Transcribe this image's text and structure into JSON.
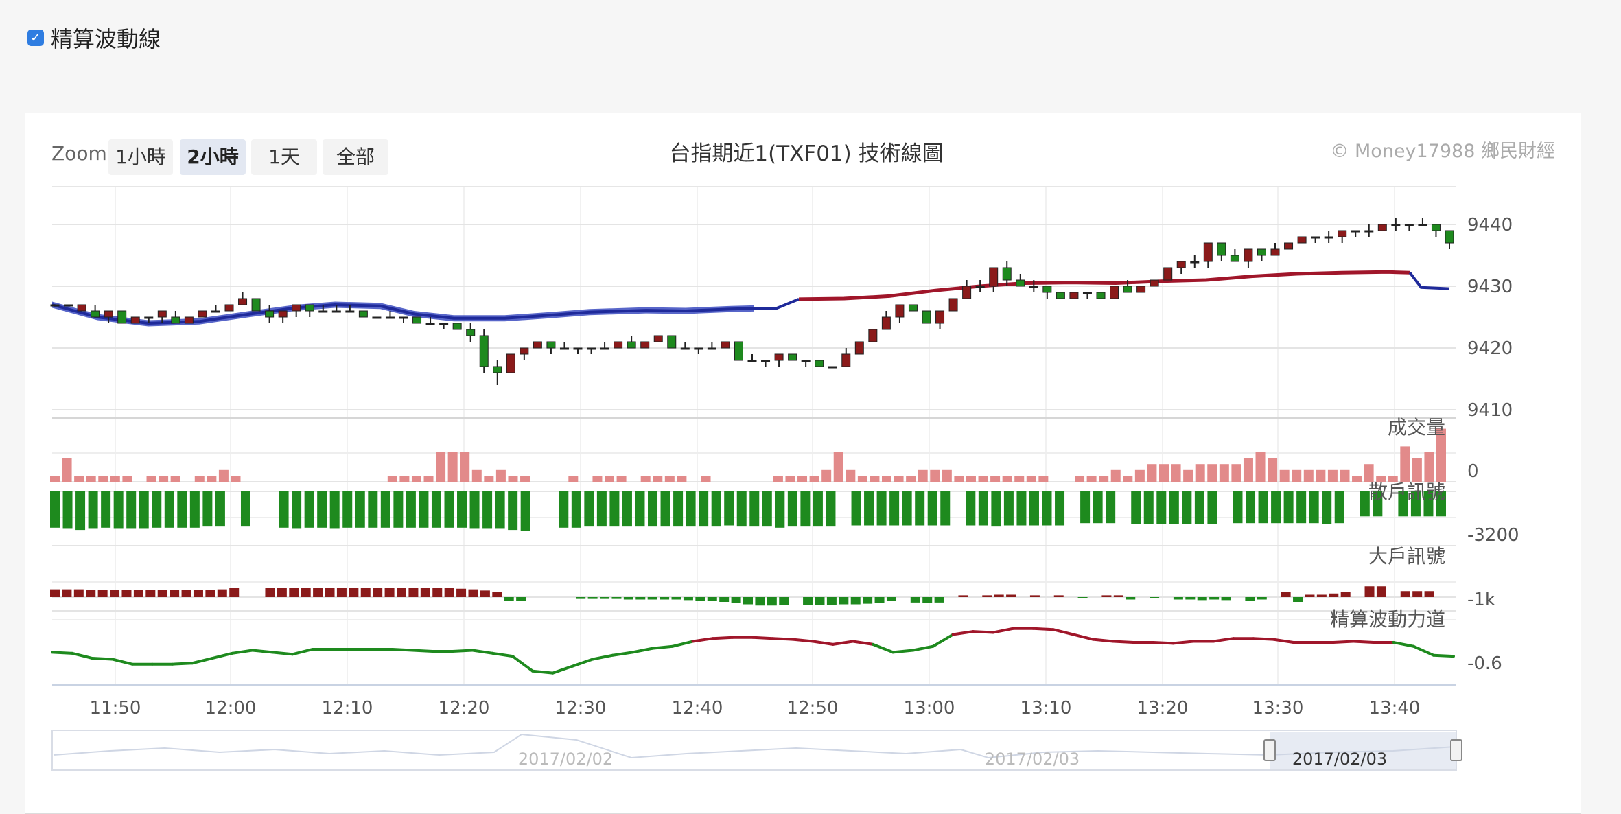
{
  "toggle": {
    "label": "精算波動線",
    "checked": true
  },
  "chart_header": {
    "zoom_label": "Zoom",
    "zoom_buttons": [
      "1小時",
      "2小時",
      "1天",
      "全部"
    ],
    "active_zoom": "2小時",
    "title": "台指期近1(TXF01) 技術線圖",
    "credit": "© Money17988 鄉民財經"
  },
  "colors": {
    "up": "#8b1a1a",
    "down": "#1e8a1e",
    "volume": "#e28a8a",
    "ma_down": "#1f2a9a",
    "ma_up": "#a0162a"
  },
  "chart_data": [
    {
      "type": "candlestick",
      "title": "台指期近1(TXF01) 技術線圖",
      "x_ticks": [
        "11:50",
        "12:00",
        "12:10",
        "12:20",
        "12:30",
        "12:40",
        "12:50",
        "13:00",
        "13:10",
        "13:20",
        "13:30",
        "13:40"
      ],
      "y_ticks": [
        9440,
        9430,
        9420,
        9410
      ],
      "ylim": [
        9408,
        9443
      ],
      "ohlc": [
        [
          9427,
          9427,
          9427,
          9427
        ],
        [
          9427,
          9427,
          9427,
          9427
        ],
        [
          9426,
          9427,
          9426,
          9426
        ],
        [
          9426,
          9425,
          9427,
          9425
        ],
        [
          9425,
          9426,
          9426,
          9424
        ],
        [
          9426,
          9424,
          9426,
          9424
        ],
        [
          9424,
          9425,
          9425,
          9424
        ],
        [
          9425,
          9425,
          9425,
          9424
        ],
        [
          9425,
          9426,
          9426,
          9424
        ],
        [
          9425,
          9424,
          9426,
          9424
        ],
        [
          9424,
          9425,
          9425,
          9424
        ],
        [
          9425,
          9426,
          9426,
          9425
        ],
        [
          9426,
          9426,
          9427,
          9426
        ],
        [
          9426,
          9427,
          9427,
          9426
        ],
        [
          9427,
          9428,
          9429,
          9427
        ],
        [
          9428,
          9426,
          9428,
          9426
        ],
        [
          9426,
          9425,
          9427,
          9424
        ],
        [
          9425,
          9426,
          9426,
          9424
        ],
        [
          9426,
          9427,
          9427,
          9425
        ],
        [
          9427,
          9426,
          9427,
          9425
        ],
        [
          9426,
          9426,
          9427,
          9426
        ],
        [
          9426,
          9426,
          9427,
          9426
        ],
        [
          9426,
          9426,
          9427,
          9426
        ],
        [
          9426,
          9425,
          9426,
          9425
        ],
        [
          9425,
          9425,
          9425,
          9425
        ],
        [
          9425,
          9425,
          9426,
          9425
        ],
        [
          9425,
          9425,
          9425,
          9424
        ],
        [
          9425,
          9424,
          9425,
          9424
        ],
        [
          9424,
          9424,
          9425,
          9424
        ],
        [
          9424,
          9424,
          9424,
          9423
        ],
        [
          9424,
          9423,
          9424,
          9423
        ],
        [
          9423,
          9422,
          9424,
          9421
        ],
        [
          9422,
          9417,
          9423,
          9416
        ],
        [
          9417,
          9416,
          9418,
          9414
        ],
        [
          9416,
          9419,
          9419,
          9416
        ],
        [
          9419,
          9420,
          9420,
          9418
        ],
        [
          9420,
          9421,
          9421,
          9420
        ],
        [
          9421,
          9420,
          9421,
          9419
        ],
        [
          9420,
          9420,
          9421,
          9420
        ],
        [
          9420,
          9420,
          9420,
          9419
        ],
        [
          9420,
          9420,
          9420,
          9419
        ],
        [
          9420,
          9420,
          9421,
          9420
        ],
        [
          9420,
          9421,
          9421,
          9420
        ],
        [
          9421,
          9420,
          9422,
          9420
        ],
        [
          9420,
          9421,
          9421,
          9420
        ],
        [
          9421,
          9422,
          9422,
          9421
        ],
        [
          9422,
          9420,
          9422,
          9420
        ],
        [
          9420,
          9420,
          9421,
          9420
        ],
        [
          9420,
          9420,
          9420,
          9419
        ],
        [
          9420,
          9420,
          9421,
          9420
        ],
        [
          9420,
          9421,
          9421,
          9420
        ],
        [
          9421,
          9418,
          9421,
          9418
        ],
        [
          9418,
          9418,
          9419,
          9418
        ],
        [
          9418,
          9418,
          9418,
          9417
        ],
        [
          9418,
          9419,
          9419,
          9417
        ],
        [
          9419,
          9418,
          9419,
          9418
        ],
        [
          9418,
          9418,
          9418,
          9417
        ],
        [
          9418,
          9417,
          9418,
          9417
        ],
        [
          9417,
          9417,
          9417,
          9417
        ],
        [
          9417,
          9419,
          9420,
          9417
        ],
        [
          9419,
          9421,
          9421,
          9419
        ],
        [
          9421,
          9423,
          9423,
          9421
        ],
        [
          9423,
          9425,
          9426,
          9423
        ],
        [
          9425,
          9427,
          9427,
          9424
        ],
        [
          9427,
          9426,
          9427,
          9426
        ],
        [
          9426,
          9424,
          9426,
          9424
        ],
        [
          9424,
          9426,
          9426,
          9423
        ],
        [
          9426,
          9428,
          9428,
          9426
        ],
        [
          9428,
          9430,
          9431,
          9428
        ],
        [
          9430,
          9430,
          9431,
          9429
        ],
        [
          9430,
          9433,
          9433,
          9429
        ],
        [
          9433,
          9431,
          9434,
          9430
        ],
        [
          9431,
          9430,
          9432,
          9430
        ],
        [
          9430,
          9430,
          9431,
          9429
        ],
        [
          9430,
          9429,
          9430,
          9428
        ],
        [
          9429,
          9428,
          9429,
          9428
        ],
        [
          9428,
          9429,
          9429,
          9428
        ],
        [
          9429,
          9429,
          9429,
          9428
        ],
        [
          9429,
          9428,
          9429,
          9428
        ],
        [
          9428,
          9430,
          9430,
          9428
        ],
        [
          9430,
          9429,
          9431,
          9429
        ],
        [
          9429,
          9430,
          9430,
          9429
        ],
        [
          9430,
          9431,
          9431,
          9430
        ],
        [
          9431,
          9433,
          9433,
          9431
        ],
        [
          9433,
          9434,
          9434,
          9432
        ],
        [
          9434,
          9434,
          9435,
          9433
        ],
        [
          9434,
          9437,
          9437,
          9433
        ],
        [
          9437,
          9435,
          9437,
          9434
        ],
        [
          9435,
          9434,
          9436,
          9434
        ],
        [
          9434,
          9436,
          9436,
          9433
        ],
        [
          9436,
          9435,
          9436,
          9434
        ],
        [
          9435,
          9436,
          9437,
          9435
        ],
        [
          9436,
          9437,
          9437,
          9436
        ],
        [
          9437,
          9438,
          9438,
          9437
        ],
        [
          9438,
          9438,
          9438,
          9437
        ],
        [
          9438,
          9438,
          9439,
          9437
        ],
        [
          9438,
          9439,
          9439,
          9437
        ],
        [
          9439,
          9439,
          9439,
          9438
        ],
        [
          9439,
          9439,
          9440,
          9438
        ],
        [
          9439,
          9440,
          9440,
          9439
        ],
        [
          9440,
          9440,
          9441,
          9439
        ],
        [
          9440,
          9440,
          9440,
          9439
        ],
        [
          9440,
          9440,
          9441,
          9440
        ],
        [
          9440,
          9439,
          9440,
          9438
        ],
        [
          9439,
          9437,
          9438,
          9436
        ]
      ],
      "ma": [
        [
          0,
          9427.0
        ],
        [
          40,
          9425.0
        ],
        [
          85,
          9424.0
        ],
        [
          130,
          9424.3
        ],
        [
          175,
          9425.5
        ],
        [
          215,
          9426.5
        ],
        [
          250,
          9427.0
        ],
        [
          290,
          9426.8
        ],
        [
          320,
          9425.5
        ],
        [
          355,
          9424.8
        ],
        [
          400,
          9424.8
        ],
        [
          440,
          9425.3
        ],
        [
          475,
          9425.8
        ],
        [
          525,
          9426.1
        ],
        [
          560,
          9426.0
        ],
        [
          600,
          9426.3
        ],
        [
          620,
          9426.4
        ],
        [
          640,
          9426.4
        ],
        [
          660,
          9427.9
        ],
        [
          700,
          9428.0
        ],
        [
          740,
          9428.4
        ],
        [
          780,
          9429.3
        ],
        [
          820,
          9430.0
        ],
        [
          860,
          9430.5
        ],
        [
          900,
          9430.6
        ],
        [
          940,
          9430.5
        ],
        [
          980,
          9430.8
        ],
        [
          1020,
          9431.0
        ],
        [
          1060,
          9431.6
        ],
        [
          1100,
          9432.0
        ],
        [
          1140,
          9432.2
        ],
        [
          1180,
          9432.3
        ],
        [
          1200,
          9432.2
        ],
        [
          1210,
          9429.8
        ],
        [
          1235,
          9429.6
        ]
      ],
      "ma_band_end": 620,
      "ma_color_switch": 660
    },
    {
      "type": "bar",
      "title": "成交量",
      "y_ticks": [
        0
      ],
      "values": [
        1,
        4,
        1,
        1,
        1,
        1,
        1,
        0,
        1,
        1,
        1,
        0,
        1,
        1,
        2,
        1,
        0,
        0,
        0,
        0,
        0,
        0,
        0,
        0,
        0,
        0,
        0,
        0,
        1,
        1,
        1,
        1,
        5,
        5,
        5,
        2,
        1,
        2,
        1,
        1,
        0,
        0,
        0,
        1,
        0,
        1,
        1,
        1,
        0,
        1,
        1,
        1,
        1,
        0,
        1,
        0,
        0,
        0,
        0,
        0,
        1,
        1,
        1,
        1,
        2,
        5,
        2,
        1,
        1,
        1,
        1,
        1,
        2,
        2,
        2,
        1,
        1,
        1,
        1,
        1,
        1,
        1,
        1,
        0,
        0,
        1,
        1,
        1,
        2,
        1,
        2,
        3,
        3,
        3,
        2,
        3,
        3,
        3,
        3,
        4,
        5,
        4,
        2,
        2,
        2,
        2,
        2,
        2,
        1,
        3,
        1,
        1,
        6,
        4,
        5,
        9
      ],
      "colors_all": "#e28a8a"
    },
    {
      "type": "bar",
      "title": "散戶訊號",
      "y_ticks": [
        -3200
      ],
      "values": [
        -3200,
        -3300,
        -3400,
        -3300,
        -3200,
        -3300,
        -3300,
        -3300,
        -3200,
        -3200,
        -3200,
        -3200,
        -3100,
        -3100,
        0,
        -3100,
        0,
        0,
        -3200,
        -3300,
        -3200,
        -3200,
        -3300,
        -3200,
        -3200,
        -3200,
        -3200,
        -3200,
        -3200,
        -3200,
        -3200,
        -3200,
        -3200,
        -3300,
        -3300,
        -3300,
        -3400,
        -3500,
        0,
        0,
        -3200,
        -3200,
        -3100,
        -3100,
        -3100,
        -3100,
        -3100,
        -3100,
        -3100,
        -3100,
        -3100,
        -3100,
        -3100,
        -3000,
        -3100,
        -3100,
        -3100,
        -3200,
        -3100,
        -3100,
        -3100,
        -3100,
        0,
        -3000,
        -3000,
        -3000,
        -3000,
        -3000,
        -3000,
        -3000,
        -3000,
        0,
        -3000,
        -3000,
        -3100,
        -3000,
        -3000,
        -3000,
        -3000,
        -3000,
        0,
        -2800,
        -2800,
        -2800,
        0,
        -2900,
        -2900,
        -2900,
        -2900,
        -2900,
        -2900,
        -2900,
        0,
        -2800,
        -2800,
        -2800,
        -2800,
        -2800,
        -2800,
        -2800,
        -2900,
        -2800,
        0,
        -2200,
        -2200,
        0,
        -2200,
        -2200,
        -2200,
        -2200
      ],
      "colors_all": "#1e8a1e"
    },
    {
      "type": "bar",
      "title": "大戶訊號",
      "y_ticks": [
        "-1k"
      ],
      "values": [
        650,
        650,
        650,
        600,
        600,
        600,
        600,
        600,
        600,
        600,
        600,
        600,
        600,
        600,
        650,
        800,
        0,
        0,
        750,
        800,
        800,
        800,
        800,
        800,
        800,
        800,
        800,
        800,
        800,
        800,
        800,
        800,
        800,
        800,
        700,
        650,
        550,
        450,
        -300,
        -300,
        0,
        0,
        0,
        0,
        -150,
        -150,
        -150,
        -150,
        -200,
        -200,
        -200,
        -200,
        -200,
        -250,
        -300,
        -300,
        -400,
        -500,
        -600,
        -700,
        -700,
        -650,
        0,
        -650,
        -650,
        -650,
        -600,
        -600,
        -550,
        -500,
        -300,
        0,
        -450,
        -500,
        -450,
        0,
        150,
        0,
        150,
        200,
        200,
        0,
        150,
        0,
        150,
        0,
        -100,
        0,
        150,
        150,
        -200,
        0,
        -100,
        0,
        -200,
        -200,
        -250,
        -200,
        -250,
        0,
        -300,
        -200,
        0,
        400,
        -400,
        200,
        200,
        300,
        400,
        0,
        900,
        900,
        0,
        500,
        500,
        500,
        0
      ],
      "positive_color": "#8b1a1a",
      "negative_color": "#1e8a1e"
    },
    {
      "type": "line",
      "title": "精算波動力道",
      "y_ticks": [
        -0.6
      ],
      "x_start_time": "11:46",
      "values": [
        -0.58,
        -0.59,
        -0.64,
        -0.65,
        -0.7,
        -0.7,
        -0.7,
        -0.69,
        -0.64,
        -0.59,
        -0.56,
        -0.58,
        -0.6,
        -0.55,
        -0.55,
        -0.55,
        -0.55,
        -0.55,
        -0.56,
        -0.57,
        -0.57,
        -0.56,
        -0.59,
        -0.62,
        -0.77,
        -0.79,
        -0.72,
        -0.65,
        -0.61,
        -0.58,
        -0.54,
        -0.52,
        -0.47,
        -0.44,
        -0.43,
        -0.43,
        -0.44,
        -0.45,
        -0.47,
        -0.5,
        -0.47,
        -0.5,
        -0.58,
        -0.56,
        -0.52,
        -0.4,
        -0.37,
        -0.38,
        -0.34,
        -0.34,
        -0.35,
        -0.4,
        -0.45,
        -0.47,
        -0.48,
        -0.48,
        -0.49,
        -0.47,
        -0.47,
        -0.44,
        -0.44,
        -0.45,
        -0.48,
        -0.48,
        -0.48,
        -0.47,
        -0.48,
        -0.48,
        -0.52,
        -0.61,
        -0.62
      ],
      "up_color": "#a0162a",
      "down_color": "#1e8a1e"
    }
  ],
  "navigator": {
    "labels": [
      "2017/02/02",
      "2017/02/03",
      "2017/02/03"
    ]
  }
}
